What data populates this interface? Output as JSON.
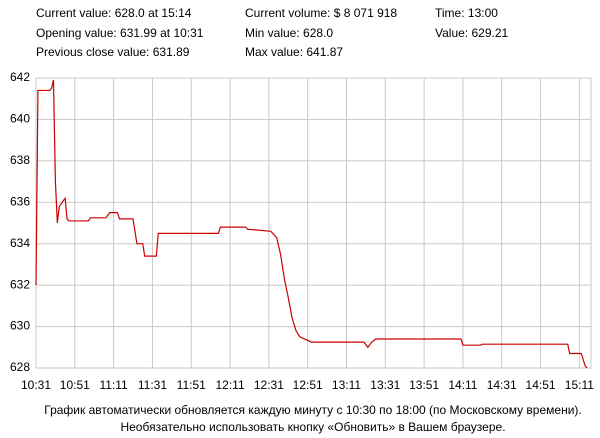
{
  "chart_data": {
    "type": "line",
    "header": [
      [
        "Current value:  628.0  at 15:14",
        "Current volume: $ 8 071 918",
        "Time:  13:00"
      ],
      [
        "Opening value: 631.99  at 10:31",
        "Min value: 628.0",
        "Value: 629.21"
      ],
      [
        "Previous close value: 631.89",
        "Max value: 641.87",
        null
      ]
    ],
    "footer": [
      "График автоматически обновляется каждую минуту с 10:30 по 18:00 (по Московскому времени).",
      "Необязательно использовать кнопку «Обновить» в Вашем браузере."
    ],
    "x": [
      631,
      632,
      638,
      639,
      640,
      641,
      642,
      643,
      646,
      647,
      648,
      658,
      659,
      667,
      669,
      673,
      674,
      681,
      683,
      686,
      687,
      693,
      694,
      725,
      726,
      739,
      740,
      752,
      755,
      757,
      759,
      761,
      763,
      765,
      767,
      773,
      800,
      802,
      804,
      806,
      850,
      851,
      860,
      861,
      905,
      906,
      912,
      914,
      915
    ],
    "series": [
      {
        "name": "Value",
        "color": "#cc0000",
        "values": [
          632.0,
          641.4,
          641.4,
          641.5,
          641.9,
          637.0,
          635.0,
          635.8,
          636.2,
          635.2,
          635.1,
          635.1,
          635.25,
          635.25,
          635.5,
          635.5,
          635.2,
          635.2,
          634.0,
          634.0,
          633.4,
          633.4,
          634.5,
          634.5,
          634.8,
          634.8,
          634.7,
          634.6,
          634.3,
          633.5,
          632.3,
          631.4,
          630.4,
          629.8,
          629.5,
          629.25,
          629.25,
          629.0,
          629.25,
          629.4,
          629.4,
          629.1,
          629.1,
          629.15,
          629.15,
          628.7,
          628.7,
          628.1,
          628.0
        ]
      }
    ],
    "xlim": [
      631,
      917
    ],
    "xticks": [
      {
        "value": 631,
        "label": "10:31"
      },
      {
        "value": 651,
        "label": "10:51"
      },
      {
        "value": 671,
        "label": "11:11"
      },
      {
        "value": 691,
        "label": "11:31"
      },
      {
        "value": 711,
        "label": "11:51"
      },
      {
        "value": 731,
        "label": "12:11"
      },
      {
        "value": 751,
        "label": "12:31"
      },
      {
        "value": 771,
        "label": "12:51"
      },
      {
        "value": 791,
        "label": "13:11"
      },
      {
        "value": 811,
        "label": "13:31"
      },
      {
        "value": 831,
        "label": "13:51"
      },
      {
        "value": 851,
        "label": "14:11"
      },
      {
        "value": 871,
        "label": "14:31"
      },
      {
        "value": 891,
        "label": "14:51"
      },
      {
        "value": 911,
        "label": "15:11"
      }
    ],
    "ylim": [
      628,
      642
    ],
    "yticks": [
      628,
      630,
      632,
      634,
      636,
      638,
      640,
      642
    ],
    "grid": true
  }
}
